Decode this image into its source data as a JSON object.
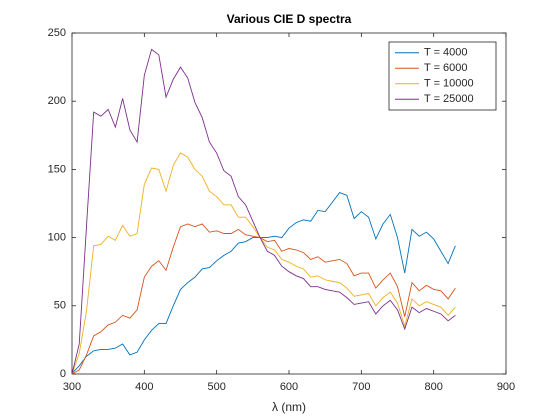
{
  "chart_data": {
    "type": "line",
    "title": "Various CIE D spectra",
    "x_label": "λ (nm)",
    "x": [
      300,
      310,
      320,
      330,
      340,
      350,
      360,
      370,
      380,
      390,
      400,
      410,
      420,
      430,
      440,
      450,
      460,
      470,
      480,
      490,
      500,
      510,
      520,
      530,
      540,
      550,
      560,
      570,
      580,
      590,
      600,
      610,
      620,
      630,
      640,
      650,
      660,
      670,
      680,
      690,
      700,
      710,
      720,
      730,
      740,
      750,
      760,
      770,
      780,
      790,
      800,
      810,
      820,
      830
    ],
    "series": [
      {
        "name": "T = 4000",
        "color": "#0072bd",
        "values": [
          0.5,
          6,
          13,
          17,
          18,
          18,
          19,
          22,
          14,
          16,
          25,
          32,
          37,
          37,
          50,
          62,
          67,
          71,
          77,
          78,
          83,
          87,
          90,
          96,
          97,
          100,
          100,
          100,
          101,
          100,
          107,
          111,
          113,
          112,
          120,
          119,
          126,
          133,
          131,
          114,
          119,
          115,
          99,
          110,
          117,
          100,
          74,
          106,
          101,
          104,
          99,
          90,
          81,
          94
        ]
      },
      {
        "name": "T = 6000",
        "color": "#d95319",
        "values": [
          0,
          3,
          14,
          28,
          31,
          36,
          38,
          43,
          41,
          47,
          71,
          79,
          83,
          76,
          93,
          108,
          110,
          108,
          110,
          104,
          105,
          103,
          103,
          106,
          102,
          101,
          100,
          97,
          98,
          90,
          92,
          91,
          89,
          84,
          86,
          82,
          83,
          84,
          81,
          72,
          74,
          74,
          63,
          69,
          74,
          64,
          42,
          67,
          61,
          65,
          62,
          61,
          55,
          63
        ]
      },
      {
        "name": "T = 10000",
        "color": "#edb120",
        "values": [
          0,
          15,
          46,
          94,
          95,
          101,
          98,
          109,
          101,
          103,
          139,
          151,
          150,
          134,
          153,
          162,
          159,
          150,
          145,
          134,
          130,
          124,
          124,
          115,
          115,
          108,
          100,
          93,
          91,
          84,
          82,
          79,
          77,
          71,
          72,
          69,
          68,
          67,
          63,
          57,
          58,
          59,
          50,
          56,
          60,
          52,
          35,
          55,
          50,
          53,
          51,
          49,
          43,
          49
        ]
      },
      {
        "name": "T = 25000",
        "color": "#7e2f8e",
        "values": [
          0,
          22,
          108,
          192,
          189,
          194,
          181,
          202,
          179,
          170,
          219,
          238,
          234,
          203,
          216,
          225,
          217,
          199,
          188,
          170,
          162,
          149,
          145,
          130,
          124,
          112,
          100,
          90,
          87,
          79,
          75,
          72,
          70,
          64,
          64,
          62,
          61,
          60,
          56,
          51,
          52,
          53,
          44,
          50,
          54,
          47,
          33,
          49,
          45,
          48,
          46,
          44,
          39,
          43
        ]
      }
    ],
    "xlim": [
      300,
      900
    ],
    "xticks": [
      300,
      400,
      500,
      600,
      700,
      800,
      900
    ],
    "ylim": [
      0,
      250
    ],
    "yticks": [
      0,
      50,
      100,
      150,
      200,
      250
    ],
    "legend": "northeast"
  }
}
